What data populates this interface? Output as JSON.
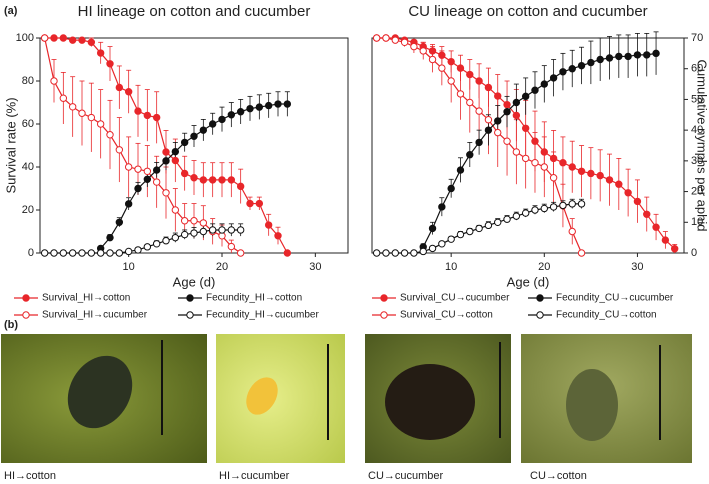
{
  "panel_labels": [
    "(a)",
    "(b)"
  ],
  "chart_data": [
    {
      "type": "line",
      "title": "HI lineage on cotton and cucumber",
      "x_label": "Age (d)",
      "y_label": "Survival rate (%)",
      "xlim": [
        0.5,
        33.5
      ],
      "xticks": [
        10,
        20,
        30
      ],
      "ylim": [
        0,
        100
      ],
      "yticks": [
        0,
        20,
        40,
        60,
        80,
        100
      ],
      "y2lim": [
        0,
        70
      ],
      "series": [
        {
          "name": "Survival_HI→cotton",
          "color": "#e8262a",
          "filled": true,
          "x": [
            1,
            2,
            3,
            4,
            5,
            6,
            7,
            8,
            9,
            10,
            11,
            12,
            13,
            14,
            15,
            16,
            17,
            18,
            19,
            20,
            21,
            22,
            23,
            24,
            25,
            26,
            27
          ],
          "values": [
            100,
            100,
            100,
            99,
            99,
            98,
            93,
            88,
            77,
            75,
            66,
            64,
            63,
            47,
            43,
            37,
            35,
            34,
            34,
            34,
            34,
            31,
            23,
            23,
            13,
            8,
            0
          ],
          "errors": [
            0,
            0,
            0,
            1,
            1,
            2,
            5,
            8,
            10,
            10,
            12,
            12,
            12,
            10,
            10,
            8,
            8,
            8,
            8,
            8,
            8,
            8,
            3,
            3,
            5,
            4,
            0
          ]
        },
        {
          "name": "Survival_HI→cucumber",
          "color": "#e8262a",
          "filled": false,
          "x": [
            1,
            2,
            3,
            4,
            5,
            6,
            7,
            8,
            9,
            10,
            11,
            12,
            13,
            14,
            15,
            16,
            17,
            18,
            19,
            20,
            21,
            22
          ],
          "values": [
            100,
            80,
            72,
            68,
            65,
            63,
            60,
            55,
            48,
            40,
            39,
            38,
            33,
            28,
            20,
            15,
            15,
            14,
            10,
            8,
            3,
            0
          ],
          "errors": [
            0,
            10,
            12,
            14,
            15,
            16,
            16,
            16,
            15,
            14,
            12,
            12,
            12,
            12,
            10,
            8,
            8,
            8,
            6,
            5,
            3,
            0
          ]
        },
        {
          "name": "Fecundity_HI→cotton",
          "color": "#111111",
          "filled": true,
          "axis": "y2",
          "x": [
            7,
            8,
            9,
            10,
            11,
            12,
            13,
            14,
            15,
            16,
            17,
            18,
            19,
            20,
            21,
            22,
            23,
            24,
            25,
            26,
            27
          ],
          "values": [
            1.5,
            5,
            10,
            16,
            21,
            24,
            27,
            30,
            33,
            36,
            38,
            40,
            42,
            43.5,
            45,
            46,
            47,
            47.5,
            48,
            48.5,
            48.5
          ],
          "errors": [
            0.5,
            1,
            1.5,
            2,
            2,
            2.5,
            2.5,
            3,
            3,
            3,
            3.5,
            3.5,
            3.5,
            4,
            4,
            4,
            4,
            4,
            4,
            4,
            4
          ]
        },
        {
          "name": "Fecundity_HI→cucumber",
          "color": "#111111",
          "filled": false,
          "axis": "y2",
          "x": [
            1,
            2,
            3,
            4,
            5,
            6,
            7,
            8,
            9,
            10,
            11,
            12,
            13,
            14,
            15,
            16,
            17,
            18,
            19,
            20,
            21,
            22
          ],
          "values": [
            0,
            0,
            0,
            0,
            0,
            0,
            0,
            0,
            0,
            0.5,
            1,
            2,
            3,
            4,
            5,
            6,
            6.5,
            7,
            7.5,
            7.5,
            7.5,
            7.5
          ],
          "errors": [
            0,
            0,
            0,
            0,
            0,
            0,
            0,
            0,
            0,
            0.3,
            0.5,
            0.8,
            1,
            1.2,
            1.5,
            1.5,
            1.8,
            2,
            2,
            2,
            2,
            2
          ]
        }
      ]
    },
    {
      "type": "line",
      "title": "CU lineage on cotton and cucumber",
      "x_label": "Age (d)",
      "y2_label": "Cumulative nymphs per aphid",
      "xlim": [
        1.5,
        35
      ],
      "xticks": [
        10,
        20,
        30
      ],
      "ylim": [
        0,
        100
      ],
      "y2lim": [
        0,
        70
      ],
      "y2ticks": [
        0,
        10,
        20,
        30,
        40,
        50,
        60,
        70
      ],
      "series": [
        {
          "name": "Survival_CU→cucumber",
          "color": "#e8262a",
          "filled": true,
          "x": [
            2,
            3,
            4,
            5,
            6,
            7,
            8,
            9,
            10,
            11,
            12,
            13,
            14,
            15,
            16,
            17,
            18,
            19,
            20,
            21,
            22,
            23,
            24,
            25,
            26,
            27,
            28,
            29,
            30,
            31,
            32,
            33,
            34
          ],
          "values": [
            100,
            100,
            100,
            99,
            98,
            96,
            94,
            92,
            89,
            86,
            83,
            80,
            77,
            73,
            69,
            64,
            58,
            52,
            47,
            44,
            42,
            40,
            38,
            37,
            36,
            34,
            32,
            28,
            24,
            18,
            12,
            6,
            2
          ],
          "errors": [
            0,
            0,
            0,
            1,
            1,
            2,
            3,
            4,
            5,
            6,
            7,
            8,
            9,
            10,
            11,
            12,
            13,
            14,
            14,
            13,
            12,
            12,
            12,
            12,
            12,
            12,
            12,
            11,
            10,
            8,
            6,
            4,
            2
          ]
        },
        {
          "name": "Survival_CU→cotton",
          "color": "#e8262a",
          "filled": false,
          "x": [
            2,
            3,
            4,
            5,
            6,
            7,
            8,
            9,
            10,
            11,
            12,
            13,
            14,
            15,
            16,
            17,
            18,
            19,
            20,
            21,
            22,
            23,
            24
          ],
          "values": [
            100,
            100,
            99,
            98,
            96,
            94,
            90,
            86,
            80,
            74,
            70,
            66,
            62,
            56,
            52,
            47,
            44,
            42,
            40,
            35,
            22,
            10,
            0
          ],
          "errors": [
            0,
            0,
            1,
            2,
            3,
            4,
            6,
            8,
            10,
            12,
            14,
            15,
            16,
            16,
            16,
            15,
            14,
            14,
            14,
            12,
            10,
            6,
            0
          ]
        },
        {
          "name": "Fecundity_CU→cucumber",
          "color": "#111111",
          "filled": true,
          "axis": "y2",
          "x": [
            7,
            8,
            9,
            10,
            11,
            12,
            13,
            14,
            15,
            16,
            17,
            18,
            19,
            20,
            21,
            22,
            23,
            24,
            25,
            26,
            27,
            28,
            29,
            30,
            31,
            32
          ],
          "values": [
            2,
            8,
            15,
            21,
            27,
            32,
            36,
            40,
            43,
            46,
            49,
            51,
            53,
            55,
            57,
            59,
            60,
            61,
            62,
            63,
            63.5,
            64,
            64,
            64.5,
            64.5,
            65
          ],
          "errors": [
            1,
            2,
            3,
            3,
            4,
            4,
            4,
            5,
            5,
            5,
            6,
            6,
            6,
            6,
            6,
            6,
            6,
            6,
            7,
            7,
            7,
            7,
            7,
            7,
            7,
            7
          ]
        },
        {
          "name": "Fecundity_CU→cotton",
          "color": "#111111",
          "filled": false,
          "axis": "y2",
          "x": [
            2,
            3,
            4,
            5,
            6,
            7,
            8,
            9,
            10,
            11,
            12,
            13,
            14,
            15,
            16,
            17,
            18,
            19,
            20,
            21,
            22,
            23,
            24
          ],
          "values": [
            0,
            0,
            0,
            0,
            0,
            0.5,
            1.5,
            3,
            4.5,
            6,
            7,
            8,
            9,
            10,
            11,
            12,
            13,
            14,
            14.5,
            15,
            15.5,
            16,
            16
          ],
          "errors": [
            0,
            0,
            0,
            0,
            0,
            0.2,
            0.4,
            0.6,
            0.8,
            1,
            1,
            1,
            1.2,
            1.2,
            1.2,
            1.3,
            1.3,
            1.4,
            1.4,
            1.5,
            1.5,
            1.5,
            1.5
          ]
        }
      ]
    }
  ],
  "photos": [
    {
      "caption": "HI→cotton"
    },
    {
      "caption": "HI→cucumber"
    },
    {
      "caption": "CU→cucumber"
    },
    {
      "caption": "CU→cotton"
    }
  ]
}
